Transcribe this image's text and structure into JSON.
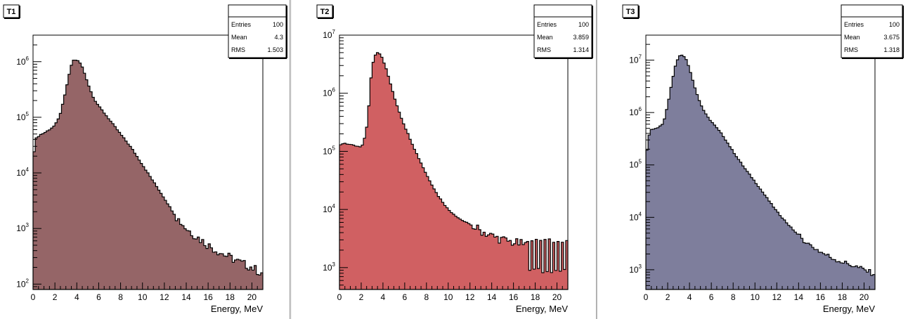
{
  "canvas": {
    "background": "#ffffff",
    "divider_color": "#d4d4d4"
  },
  "chart_data": [
    {
      "type": "histogram",
      "title": "T1",
      "xlabel": "Energy, MeV",
      "ylabel": "",
      "yscale": "log",
      "xlim": [
        0,
        21
      ],
      "ylim": [
        80,
        3000000
      ],
      "fill_color": "#956567",
      "x_ticks": [
        "0",
        "2",
        "4",
        "6",
        "8",
        "10",
        "12",
        "14",
        "16",
        "18",
        "20"
      ],
      "y_ticks": [
        {
          "value": 100,
          "base": "10",
          "exp": "2"
        },
        {
          "value": 1000,
          "base": "10",
          "exp": "3"
        },
        {
          "value": 10000,
          "base": "10",
          "exp": "4"
        },
        {
          "value": 100000,
          "base": "10",
          "exp": "5"
        },
        {
          "value": 1000000,
          "base": "10",
          "exp": "6"
        }
      ],
      "stats": {
        "entries_label": "Entries",
        "entries": "100",
        "mean_label": "Mean",
        "mean": "4.3",
        "rms_label": "RMS",
        "rms": "1.503"
      },
      "bin_width": 0.2,
      "anchors": [
        [
          0.0,
          15000
        ],
        [
          0.2,
          40000
        ],
        [
          0.6,
          48000
        ],
        [
          1.0,
          52000
        ],
        [
          1.6,
          62000
        ],
        [
          2.0,
          72000
        ],
        [
          2.4,
          100000
        ],
        [
          2.8,
          200000
        ],
        [
          3.2,
          480000
        ],
        [
          3.6,
          1050000
        ],
        [
          4.0,
          1080000
        ],
        [
          4.4,
          900000
        ],
        [
          4.8,
          550000
        ],
        [
          5.2,
          320000
        ],
        [
          5.6,
          210000
        ],
        [
          6.0,
          160000
        ],
        [
          7.0,
          90000
        ],
        [
          8.0,
          50000
        ],
        [
          9.0,
          28000
        ],
        [
          10.0,
          14000
        ],
        [
          11.0,
          7000
        ],
        [
          12.0,
          3500
        ],
        [
          13.0,
          1700
        ],
        [
          14.0,
          1000
        ],
        [
          15.0,
          700
        ],
        [
          16.0,
          500
        ],
        [
          17.0,
          380
        ],
        [
          18.0,
          300
        ],
        [
          19.0,
          240
        ],
        [
          20.0,
          200
        ],
        [
          20.8,
          160
        ]
      ],
      "jitter": 0.08,
      "jitter_from": 13.0
    },
    {
      "type": "histogram",
      "title": "T2",
      "xlabel": "Energy, MeV",
      "ylabel": "",
      "yscale": "log",
      "xlim": [
        0,
        21
      ],
      "ylim": [
        420,
        10000000
      ],
      "fill_color": "#d06062",
      "x_ticks": [
        "0",
        "2",
        "4",
        "6",
        "8",
        "10",
        "12",
        "14",
        "16",
        "18",
        "20"
      ],
      "y_ticks": [
        {
          "value": 1000,
          "base": "10",
          "exp": "3"
        },
        {
          "value": 10000,
          "base": "10",
          "exp": "4"
        },
        {
          "value": 100000,
          "base": "10",
          "exp": "5"
        },
        {
          "value": 1000000,
          "base": "10",
          "exp": "6"
        },
        {
          "value": 10000000,
          "base": "10",
          "exp": "7"
        }
      ],
      "stats": {
        "entries_label": "Entries",
        "entries": "100",
        "mean_label": "Mean",
        "mean": "3.859",
        "rms_label": "RMS",
        "rms": "1.314"
      },
      "bin_width": 0.2,
      "anchors": [
        [
          0.0,
          125000
        ],
        [
          0.4,
          140000
        ],
        [
          1.0,
          130000
        ],
        [
          1.6,
          122000
        ],
        [
          2.0,
          118000
        ],
        [
          2.2,
          135000
        ],
        [
          2.6,
          330000
        ],
        [
          2.8,
          1100000
        ],
        [
          3.0,
          3000000
        ],
        [
          3.4,
          5200000
        ],
        [
          3.8,
          4700000
        ],
        [
          4.2,
          3000000
        ],
        [
          4.6,
          1700000
        ],
        [
          5.0,
          900000
        ],
        [
          5.6,
          420000
        ],
        [
          6.0,
          270000
        ],
        [
          7.0,
          100000
        ],
        [
          8.0,
          40000
        ],
        [
          9.0,
          18000
        ],
        [
          10.0,
          10000
        ],
        [
          11.0,
          7000
        ],
        [
          12.0,
          5500
        ],
        [
          13.0,
          4300
        ],
        [
          14.0,
          3500
        ],
        [
          15.0,
          3000
        ],
        [
          16.0,
          2700
        ],
        [
          17.0,
          2500
        ],
        [
          18.0,
          2500
        ],
        [
          19.0,
          2500
        ],
        [
          20.0,
          2500
        ],
        [
          20.8,
          2000
        ]
      ],
      "jitter": 0.08,
      "jitter_from": 12.0,
      "spikes": {
        "from": 17.4,
        "low": 850,
        "high": 3000
      }
    },
    {
      "type": "histogram",
      "title": "T3",
      "xlabel": "Energy, MeV",
      "ylabel": "",
      "yscale": "log",
      "xlim": [
        0,
        21
      ],
      "ylim": [
        420,
        30000000
      ],
      "fill_color": "#7e7e9c",
      "x_ticks": [
        "0",
        "2",
        "4",
        "6",
        "8",
        "10",
        "12",
        "14",
        "16",
        "18",
        "20"
      ],
      "y_ticks": [
        {
          "value": 1000,
          "base": "10",
          "exp": "3"
        },
        {
          "value": 10000,
          "base": "10",
          "exp": "4"
        },
        {
          "value": 100000,
          "base": "10",
          "exp": "5"
        },
        {
          "value": 1000000,
          "base": "10",
          "exp": "6"
        },
        {
          "value": 10000000,
          "base": "10",
          "exp": "7"
        }
      ],
      "stats": {
        "entries_label": "Entries",
        "entries": "100",
        "mean_label": "Mean",
        "mean": "3.675",
        "rms_label": "RMS",
        "rms": "1.318"
      },
      "bin_width": 0.2,
      "anchors": [
        [
          0.0,
          120000
        ],
        [
          0.2,
          300000
        ],
        [
          0.4,
          480000
        ],
        [
          1.0,
          500000
        ],
        [
          1.6,
          620000
        ],
        [
          2.0,
          1400000
        ],
        [
          2.4,
          4000000
        ],
        [
          2.8,
          9500000
        ],
        [
          3.2,
          13000000
        ],
        [
          3.6,
          11500000
        ],
        [
          4.0,
          7000000
        ],
        [
          4.4,
          3500000
        ],
        [
          4.8,
          1900000
        ],
        [
          5.2,
          1200000
        ],
        [
          5.6,
          850000
        ],
        [
          6.0,
          680000
        ],
        [
          7.0,
          380000
        ],
        [
          8.0,
          180000
        ],
        [
          9.0,
          90000
        ],
        [
          10.0,
          48000
        ],
        [
          11.0,
          25000
        ],
        [
          12.0,
          13000
        ],
        [
          13.0,
          7500
        ],
        [
          14.0,
          4500
        ],
        [
          15.0,
          3000
        ],
        [
          16.0,
          2200
        ],
        [
          17.0,
          1700
        ],
        [
          18.0,
          1400
        ],
        [
          19.0,
          1200
        ],
        [
          20.0,
          1000
        ],
        [
          20.8,
          850
        ]
      ],
      "jitter": 0.05,
      "jitter_from": 14.0
    }
  ]
}
